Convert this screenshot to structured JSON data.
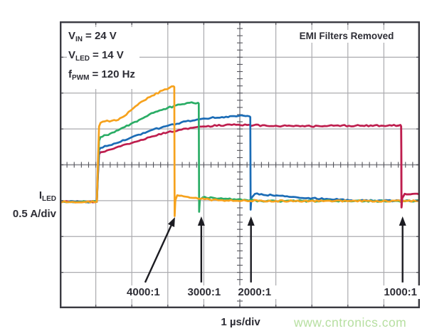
{
  "annotations": {
    "params": [
      {
        "base": "V",
        "sub": "IN",
        "rest": "= 24 V"
      },
      {
        "base": "V",
        "sub": "LED",
        "rest": "= 14 V"
      },
      {
        "base": "f",
        "sub": "PWM",
        "rest": "= 120 Hz"
      }
    ],
    "emi_note": "EMI Filters Removed",
    "y_axis": {
      "base": "I",
      "sub": "LED",
      "scale": "0.5 A/div"
    },
    "x_axis_scale": "1 µs/div",
    "watermark": "www.cntronics.com"
  },
  "colors": {
    "trace_4000_1": "#F6A21D",
    "trace_3000_1": "#2BAD66",
    "trace_2000_1": "#1B6CB6",
    "trace_1000_1": "#BE1E4E",
    "grid": "#ababaf",
    "axis": "#55555c",
    "border": "#3b3b42",
    "text": "#2d2d35",
    "arrow": "#1c1c22",
    "watermark": "#b6dfa0"
  },
  "chart_data": {
    "type": "line",
    "title": "",
    "xlabel": "1 µs/div",
    "ylabel": "ILED 0.5 A/div",
    "x_units": "µs",
    "x_per_div": 1,
    "y_units": "A",
    "y_per_div": 0.5,
    "x_total_divs": 10,
    "y_total_divs": 8,
    "baseline_amps": 0,
    "grid": true,
    "legend_position": "none",
    "series": [
      {
        "name": "4000:1",
        "color": "#F6A21D",
        "points": [
          [
            0,
            0
          ],
          [
            1.03,
            0
          ],
          [
            1.06,
            0.55
          ],
          [
            1.09,
            1.05
          ],
          [
            1.13,
            1.1
          ],
          [
            1.25,
            1.12
          ],
          [
            1.45,
            1.13
          ],
          [
            1.62,
            1.14
          ],
          [
            1.78,
            1.19
          ],
          [
            2.1,
            1.33
          ],
          [
            2.5,
            1.46
          ],
          [
            2.85,
            1.55
          ],
          [
            3.05,
            1.59
          ],
          [
            3.16,
            1.61
          ],
          [
            3.18,
            1.6
          ],
          [
            3.19,
            -0.2
          ],
          [
            3.21,
            0.02
          ],
          [
            3.26,
            0.09
          ],
          [
            3.5,
            0.07
          ],
          [
            3.9,
            0.04
          ],
          [
            4.4,
            0.02
          ],
          [
            6.0,
            0.01
          ],
          [
            10,
            0.01
          ]
        ]
      },
      {
        "name": "3000:1",
        "color": "#2BAD66",
        "points": [
          [
            0,
            0
          ],
          [
            1.03,
            0
          ],
          [
            1.06,
            0.45
          ],
          [
            1.09,
            0.85
          ],
          [
            1.13,
            0.9
          ],
          [
            1.4,
            0.95
          ],
          [
            1.8,
            1.04
          ],
          [
            2.2,
            1.14
          ],
          [
            2.6,
            1.24
          ],
          [
            3.0,
            1.31
          ],
          [
            3.4,
            1.36
          ],
          [
            3.6,
            1.38
          ],
          [
            3.84,
            1.38
          ],
          [
            3.86,
            1.37
          ],
          [
            3.87,
            -0.14
          ],
          [
            3.89,
            0.03
          ],
          [
            3.97,
            0.06
          ],
          [
            4.3,
            0.05
          ],
          [
            4.9,
            0.03
          ],
          [
            5.6,
            0.01
          ],
          [
            10,
            0.01
          ]
        ]
      },
      {
        "name": "2000:1",
        "color": "#1B6CB6",
        "points": [
          [
            0,
            0
          ],
          [
            1.03,
            0
          ],
          [
            1.06,
            0.4
          ],
          [
            1.09,
            0.72
          ],
          [
            1.13,
            0.75
          ],
          [
            1.5,
            0.81
          ],
          [
            2.0,
            0.9
          ],
          [
            2.5,
            0.99
          ],
          [
            3.0,
            1.06
          ],
          [
            3.5,
            1.12
          ],
          [
            4.0,
            1.16
          ],
          [
            4.5,
            1.18
          ],
          [
            4.9,
            1.19
          ],
          [
            5.1,
            1.2
          ],
          [
            5.27,
            1.19
          ],
          [
            5.29,
            1.18
          ],
          [
            5.3,
            -0.11
          ],
          [
            5.32,
            0.05
          ],
          [
            5.42,
            0.11
          ],
          [
            5.9,
            0.09
          ],
          [
            6.6,
            0.06
          ],
          [
            7.4,
            0.04
          ],
          [
            8.1,
            0.02
          ],
          [
            10,
            0.01
          ]
        ]
      },
      {
        "name": "1000:1",
        "color": "#BE1E4E",
        "points": [
          [
            0,
            0
          ],
          [
            1.03,
            0
          ],
          [
            1.06,
            0.36
          ],
          [
            1.09,
            0.66
          ],
          [
            1.13,
            0.69
          ],
          [
            1.5,
            0.74
          ],
          [
            2.0,
            0.82
          ],
          [
            2.5,
            0.9
          ],
          [
            3.0,
            0.97
          ],
          [
            3.5,
            1.02
          ],
          [
            4.0,
            1.05
          ],
          [
            4.6,
            1.07
          ],
          [
            5.2,
            1.07
          ],
          [
            6.0,
            1.06
          ],
          [
            6.8,
            1.05
          ],
          [
            7.6,
            1.06
          ],
          [
            8.4,
            1.06
          ],
          [
            9.1,
            1.06
          ],
          [
            9.46,
            1.07
          ],
          [
            9.48,
            1.05
          ],
          [
            9.49,
            -0.08
          ],
          [
            9.51,
            0.05
          ],
          [
            9.58,
            0.11
          ],
          [
            9.8,
            0.11
          ],
          [
            10,
            0.1
          ]
        ]
      }
    ],
    "callouts": [
      {
        "label": "4000:1",
        "arrow_tip": [
          3.2,
          5.46
        ],
        "arrow_tail": [
          2.37,
          7.28
        ],
        "label_t": 2.32,
        "label_y_div": 7.36
      },
      {
        "label": "3000:1",
        "arrow_tip": [
          3.93,
          5.44
        ],
        "arrow_tail": [
          3.93,
          7.28
        ],
        "label_t": 4.01,
        "label_y_div": 7.36
      },
      {
        "label": "2000:1",
        "arrow_tip": [
          5.31,
          5.44
        ],
        "arrow_tail": [
          5.31,
          7.28
        ],
        "label_t": 5.41,
        "label_y_div": 7.36
      },
      {
        "label": "1000:1",
        "arrow_tip": [
          9.52,
          5.44
        ],
        "arrow_tail": [
          9.52,
          7.28
        ],
        "label_t": 9.46,
        "label_y_div": 7.36
      }
    ]
  }
}
